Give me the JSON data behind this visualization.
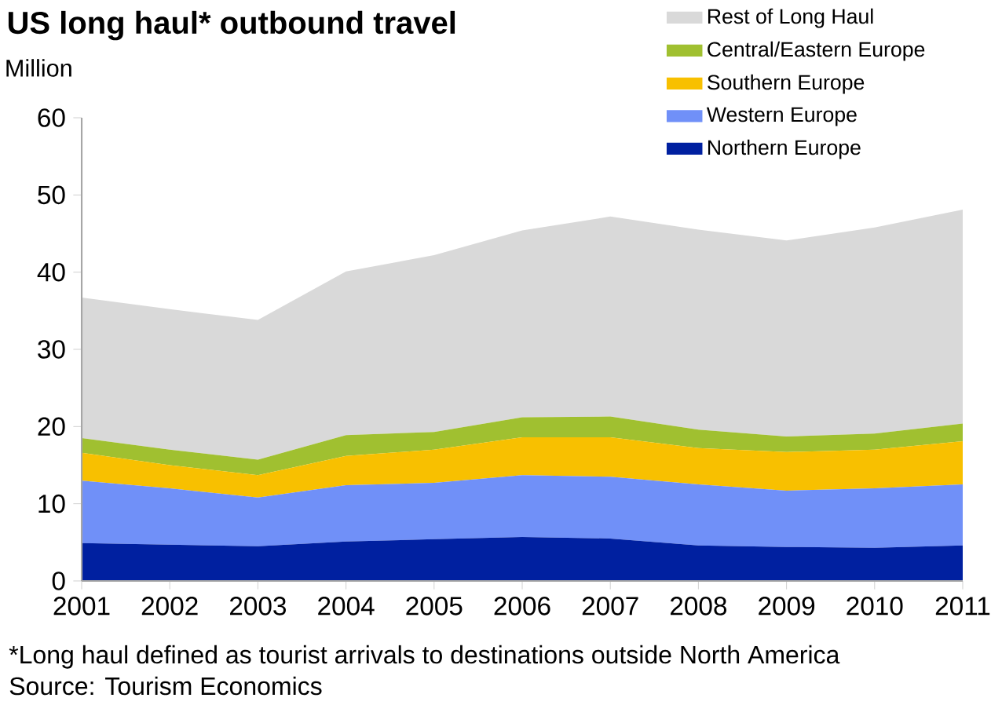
{
  "chart_data": {
    "type": "area",
    "stacked": true,
    "title": "US long haul* outbound travel",
    "ylabel": "Million",
    "x": [
      2001,
      2002,
      2003,
      2004,
      2005,
      2006,
      2007,
      2008,
      2009,
      2010,
      2011
    ],
    "xlim": [
      2001,
      2011
    ],
    "xticks": [
      2001,
      2002,
      2003,
      2004,
      2005,
      2006,
      2007,
      2008,
      2009,
      2010,
      2011
    ],
    "ylim": [
      0,
      60
    ],
    "yticks": [
      0,
      10,
      20,
      30,
      40,
      50,
      60
    ],
    "grid": false,
    "legend": "top right",
    "series": [
      {
        "name": "Northern Europe",
        "color": "#0020a0",
        "values": [
          4.9,
          4.7,
          4.5,
          5.1,
          5.4,
          5.7,
          5.5,
          4.6,
          4.4,
          4.3,
          4.6
        ]
      },
      {
        "name": "Western Europe",
        "color": "#7090f8",
        "values": [
          8.1,
          7.3,
          6.3,
          7.3,
          7.3,
          8.0,
          8.0,
          7.9,
          7.3,
          7.7,
          7.9
        ]
      },
      {
        "name": "Southern Europe",
        "color": "#f8c000",
        "values": [
          3.6,
          3.0,
          2.9,
          3.8,
          4.3,
          4.9,
          5.1,
          4.7,
          5.0,
          5.0,
          5.6
        ]
      },
      {
        "name": "Central/Eastern Europe",
        "color": "#a0c030",
        "values": [
          1.9,
          2.0,
          2.0,
          2.7,
          2.3,
          2.6,
          2.7,
          2.4,
          2.0,
          2.1,
          2.3
        ]
      },
      {
        "name": "Rest of Long Haul",
        "color": "#d9d9d9",
        "values": [
          18.2,
          18.2,
          18.1,
          21.2,
          22.9,
          24.2,
          25.9,
          25.9,
          25.4,
          26.7,
          27.7
        ]
      }
    ],
    "annotations": [
      "*Long haul defined as tourist arrivals to destinations outside North America",
      "Source: Tourism Economics"
    ]
  }
}
